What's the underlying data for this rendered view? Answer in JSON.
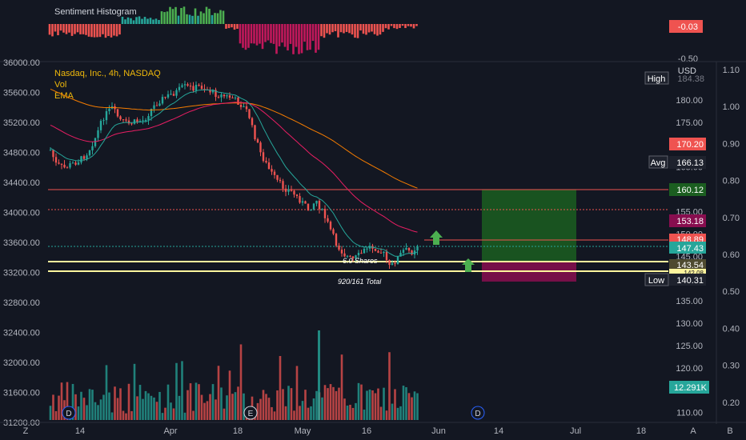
{
  "indicator": {
    "title": "Sentiment Histogram",
    "value_badge": "-0.03",
    "scale_label": "-0.50"
  },
  "legend": {
    "symbol": "Nasdaq, Inc., 4h, NASDAQ",
    "vol": "Vol",
    "ema": "EMA"
  },
  "currency": "USD",
  "axes": {
    "left_ticks": [
      "36000.00",
      "35600.00",
      "35200.00",
      "34800.00",
      "34400.00",
      "34000.00",
      "33600.00",
      "33200.00",
      "32800.00",
      "32400.00",
      "32000.00",
      "31600.00",
      "31200.00"
    ],
    "center_ticks": [
      "180.00",
      "175.00",
      "170.00",
      "165.00",
      "160.00",
      "155.00",
      "150.00",
      "145.00",
      "140.00",
      "135.00",
      "130.00",
      "125.00",
      "120.00",
      "115.00",
      "110.00"
    ],
    "right_ticks": [
      "1.10",
      "1.00",
      "0.90",
      "0.80",
      "0.70",
      "0.60",
      "0.50",
      "0.40",
      "0.30",
      "0.20"
    ],
    "x_ticks": [
      "14",
      "Apr",
      "18",
      "May",
      "16",
      "Jun",
      "14",
      "Jul",
      "18"
    ],
    "corner_left": "Z",
    "corner_right_a": "A",
    "corner_right_b": "B"
  },
  "price_badges": {
    "high_label": "High",
    "high_value": "184.38",
    "p170": "170.20",
    "avg_label": "Avg",
    "avg_value": "166.13",
    "p160": "160.12",
    "p153": "153.18",
    "p148": "148.89",
    "p147": "147.43",
    "p143": "143.54",
    "p142": "142.08",
    "low_label": "Low",
    "low_value": "140.31",
    "vol_value": "12.291K"
  },
  "annotations": {
    "shares": "6.0 Shares",
    "total": "920/161 Total"
  },
  "events": {
    "d1": "D",
    "e1": "E",
    "d2": "D"
  },
  "colors": {
    "background": "#131722",
    "up": "#26a69a",
    "down": "#ef5350",
    "ema_fast": "#26a69a",
    "ema_mid": "#e91e63",
    "ema_slow": "#f57c00",
    "target_zone": "#1b5e20",
    "stop_zone": "#880e4f",
    "level_line": "#fff59d",
    "buy_arrow": "#4caf50"
  }
}
